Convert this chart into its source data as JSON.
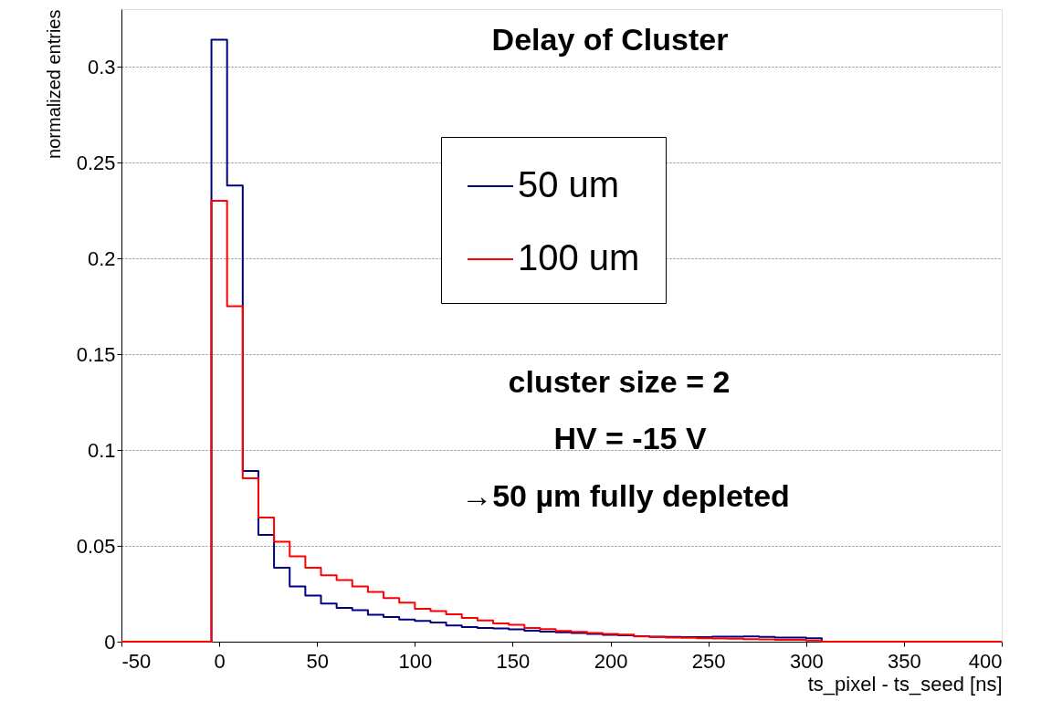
{
  "chart_data": {
    "type": "histogram",
    "title": "Delay of Cluster",
    "xlabel": "ts_pixel - ts_seed [ns]",
    "ylabel": "normalized entries",
    "bins": [
      -50,
      -4,
      4,
      12,
      20,
      28,
      36,
      44,
      52,
      60,
      68,
      76,
      84,
      92,
      100,
      108,
      116,
      124,
      132,
      140,
      148,
      156,
      164,
      172,
      180,
      188,
      196,
      204,
      212,
      220,
      228,
      236,
      244,
      252,
      260,
      268,
      276,
      284,
      292,
      300,
      308,
      400
    ],
    "series": [
      {
        "name": "50 um",
        "color": "#000080",
        "values": [
          0,
          0.314,
          0.238,
          0.089,
          0.0557,
          0.0386,
          0.0288,
          0.024,
          0.0199,
          0.0176,
          0.0164,
          0.014,
          0.0129,
          0.0116,
          0.0108,
          0.01,
          0.0084,
          0.0076,
          0.0071,
          0.0069,
          0.0064,
          0.0057,
          0.0052,
          0.0049,
          0.0045,
          0.004,
          0.0036,
          0.0033,
          0.0029,
          0.0026,
          0.0025,
          0.0024,
          0.0024,
          0.0026,
          0.0026,
          0.0027,
          0.0025,
          0.0022,
          0.0022,
          0.0018,
          0
        ]
      },
      {
        "name": "100 um",
        "color": "#ff0000",
        "values": [
          0,
          0.23,
          0.175,
          0.0852,
          0.0648,
          0.0521,
          0.0445,
          0.0386,
          0.0346,
          0.0322,
          0.0288,
          0.0259,
          0.0227,
          0.0203,
          0.0171,
          0.016,
          0.0143,
          0.0124,
          0.0111,
          0.0095,
          0.0088,
          0.0071,
          0.0065,
          0.0056,
          0.0051,
          0.0045,
          0.004,
          0.0037,
          0.0027,
          0.0024,
          0.0022,
          0.002,
          0.0018,
          0.0017,
          0.0015,
          0.0013,
          0.0012,
          0.001,
          0.0009,
          0.0006,
          0
        ]
      }
    ],
    "xlim": [
      -50,
      400
    ],
    "xticks": [
      -50,
      0,
      50,
      100,
      150,
      200,
      250,
      300,
      350,
      400
    ],
    "ylim": [
      0,
      0.33
    ],
    "yticks": [
      0,
      0.05,
      0.1,
      0.15,
      0.2,
      0.25,
      0.3
    ],
    "grid": "y",
    "legend": "top right",
    "annotations": [
      "cluster size = 2",
      "HV = -15 V",
      "→50 µm fully depleted"
    ]
  }
}
